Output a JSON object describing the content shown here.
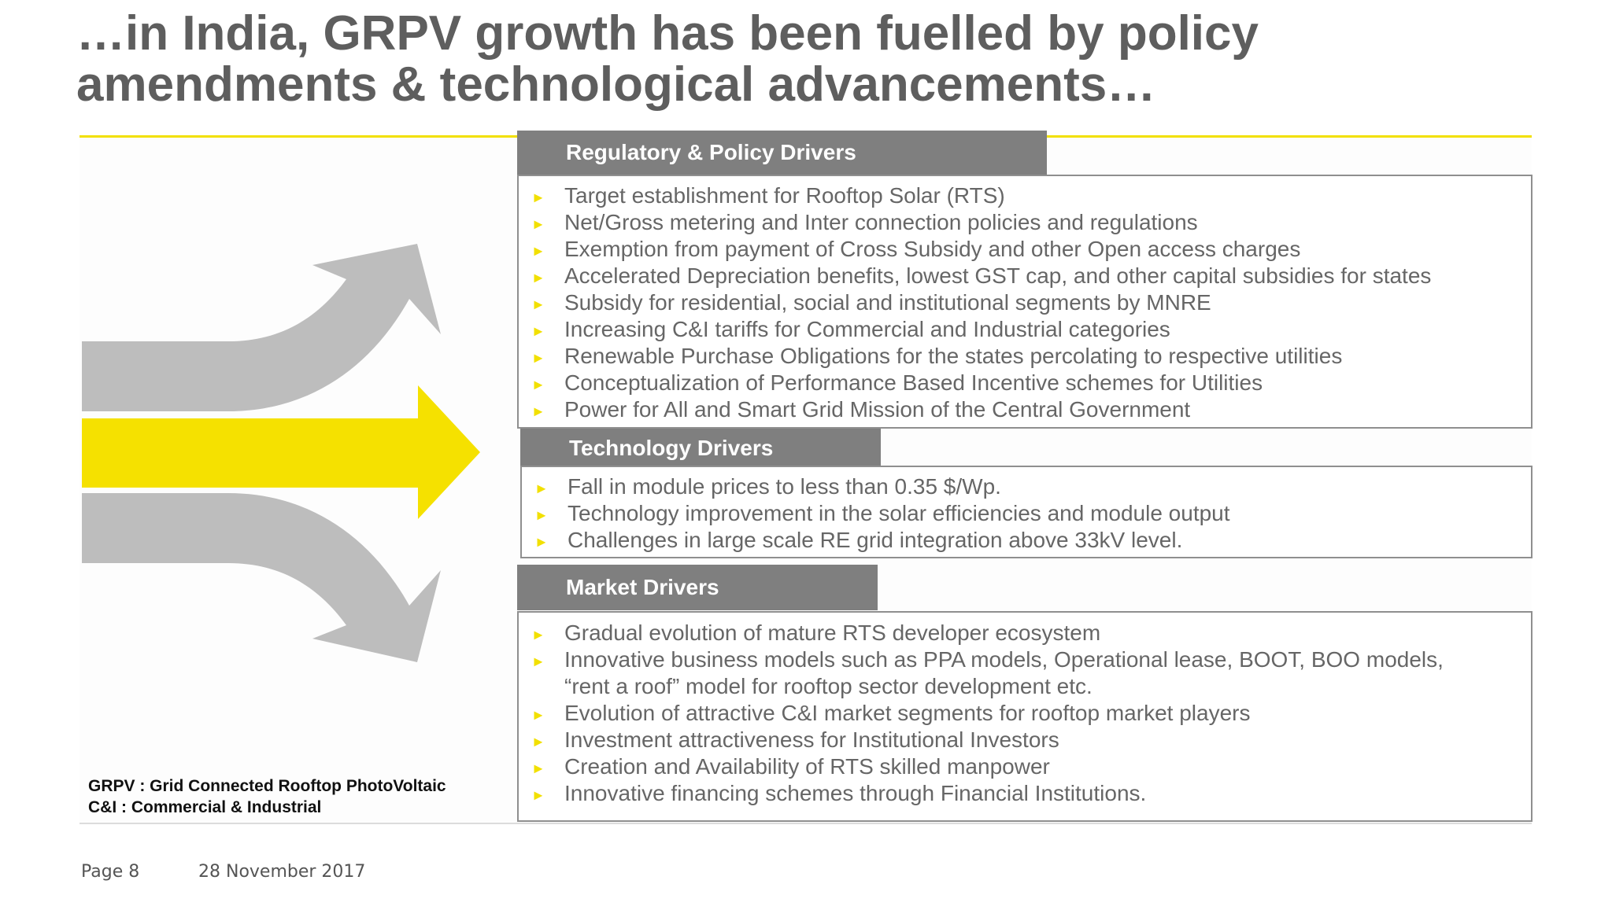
{
  "title": {
    "line1": "…in India, GRPV growth has been fuelled by policy",
    "line2": "amendments & technological advancements…"
  },
  "colors": {
    "accent": "#f2e000",
    "header_bg": "#7f7f7f",
    "arrow_gray": "#bdbdbd",
    "text": "#666666"
  },
  "icons": {
    "bullet": "triangle-right-icon",
    "arrows": [
      "curved-up-arrow-icon",
      "straight-right-arrow-icon",
      "curved-down-arrow-icon"
    ]
  },
  "sections": {
    "regulatory": {
      "header": "Regulatory & Policy Drivers",
      "items": [
        "Target establishment for Rooftop Solar (RTS)",
        "Net/Gross metering and Inter connection policies and regulations",
        "Exemption from payment of Cross Subsidy and other Open access charges",
        "Accelerated Depreciation benefits, lowest GST cap,  and other capital subsidies for states",
        "Subsidy for residential, social and institutional segments by MNRE",
        "Increasing C&I tariffs for Commercial and Industrial categories",
        "Renewable Purchase Obligations for the states percolating to respective utilities",
        "Conceptualization of Performance Based Incentive schemes for Utilities",
        "Power for All and Smart Grid Mission of the Central Government"
      ]
    },
    "technology": {
      "header": "Technology Drivers",
      "items": [
        "Fall in module prices to less than 0.35 $/Wp.",
        "Technology improvement in the solar efficiencies and module output",
        "Challenges in large scale RE grid integration above 33kV level."
      ]
    },
    "market": {
      "header": "Market Drivers",
      "items": [
        "Gradual evolution of mature RTS developer ecosystem",
        "Innovative business models such as PPA models, Operational lease, BOOT, BOO models,",
        "Evolution of attractive C&I market segments for rooftop market players",
        "Investment attractiveness for Institutional Investors",
        "Creation and Availability of RTS skilled manpower",
        "Innovative financing schemes through Financial Institutions."
      ],
      "continuation": "“rent a roof” model for rooftop sector development etc."
    }
  },
  "footnotes": {
    "line1": "GRPV : Grid Connected Rooftop PhotoVoltaic",
    "line2": "C&I : Commercial & Industrial"
  },
  "footer": {
    "page": "Page 8",
    "date": "28 November 2017"
  }
}
